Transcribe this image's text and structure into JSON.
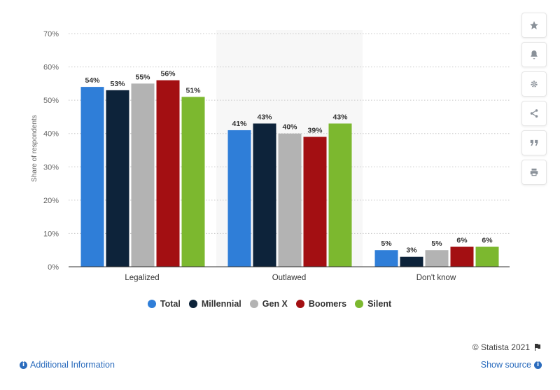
{
  "chart_data": {
    "type": "bar",
    "categories": [
      "Legalized",
      "Outlawed",
      "Don't know"
    ],
    "series": [
      {
        "name": "Total",
        "values": [
          54,
          41,
          5
        ],
        "color": "#2f7ed8"
      },
      {
        "name": "Millennial",
        "values": [
          53,
          43,
          3
        ],
        "color": "#0d233a"
      },
      {
        "name": "Gen X",
        "values": [
          55,
          40,
          5
        ],
        "color": "#b3b3b3"
      },
      {
        "name": "Boomers",
        "values": [
          56,
          39,
          6
        ],
        "color": "#a30f12"
      },
      {
        "name": "Silent",
        "values": [
          51,
          43,
          6
        ],
        "color": "#7cb82f"
      }
    ],
    "value_suffix": "%",
    "ylabel": "Share of respondents",
    "xlabel": "",
    "ylim": [
      0,
      70
    ],
    "yticks": [
      "0%",
      "10%",
      "20%",
      "30%",
      "40%",
      "50%",
      "60%",
      "70%"
    ],
    "grid": true,
    "legend_position": "bottom"
  },
  "toolbar": {
    "icons": [
      "star-icon",
      "bell-icon",
      "gear-icon",
      "share-icon",
      "quote-icon",
      "print-icon"
    ]
  },
  "footer": {
    "credit": "© Statista 2021",
    "additional_info": "Additional Information",
    "show_source": "Show source"
  }
}
